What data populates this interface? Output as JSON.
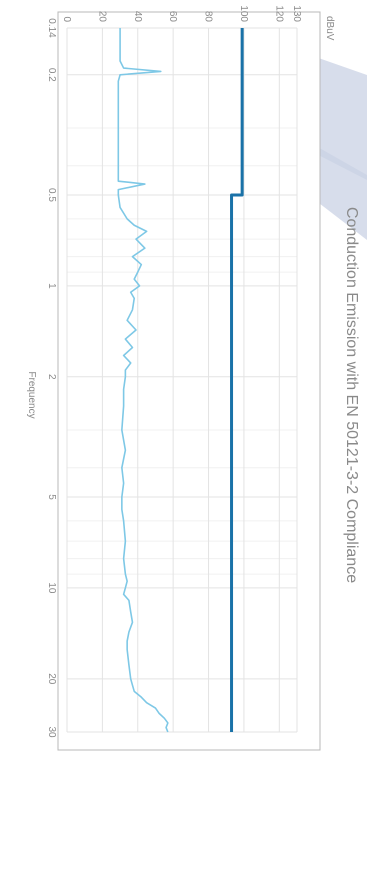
{
  "chart_data": {
    "type": "line",
    "title": "Conduction Emission with EN 50121-3-2 Compliance",
    "xlabel": "Frequency",
    "ylabel": "",
    "unit_label": "dBuV",
    "x_scale": "log",
    "xlim": [
      0.14,
      30
    ],
    "ylim": [
      0,
      130
    ],
    "grid": true,
    "x_ticks": [
      0.14,
      0.2,
      0.5,
      1,
      2,
      5,
      10,
      20,
      30
    ],
    "x_tick_labels": [
      "0.14",
      "0.2",
      "0.5",
      "1",
      "2",
      "5",
      "10",
      "20",
      "30"
    ],
    "y_ticks": [
      0,
      20,
      40,
      60,
      80,
      100,
      120,
      130
    ],
    "y_tick_labels": [
      "0",
      "20",
      "40",
      "60",
      "80",
      "100",
      "120",
      "130"
    ],
    "series": [
      {
        "color": "#1a72a8",
        "x": [
          0.14,
          0.5,
          0.5,
          30
        ],
        "y": [
          99,
          99,
          93,
          93
        ]
      },
      {
        "color": "#7ec8e6",
        "x": [
          0.14,
          0.16,
          0.18,
          0.19,
          0.195,
          0.2,
          0.21,
          0.25,
          0.3,
          0.4,
          0.45,
          0.46,
          0.48,
          0.5,
          0.55,
          0.6,
          0.63,
          0.66,
          0.7,
          0.75,
          0.8,
          0.85,
          0.9,
          0.95,
          1,
          1.05,
          1.1,
          1.2,
          1.3,
          1.4,
          1.5,
          1.6,
          1.7,
          1.8,
          1.9,
          2,
          2.2,
          2.5,
          3,
          3.5,
          4,
          4.5,
          5,
          5.5,
          6,
          7,
          8,
          9,
          9.5,
          10,
          10.5,
          11,
          12,
          13,
          14,
          15,
          16,
          18,
          20,
          21,
          22,
          23,
          24,
          25,
          26,
          27,
          28,
          29,
          30
        ],
        "y": [
          30,
          30,
          30,
          32,
          53,
          30,
          29,
          29,
          29,
          29,
          29,
          44,
          29,
          29,
          30,
          34,
          38,
          45,
          39,
          44,
          37,
          42,
          40,
          38,
          41,
          36,
          38,
          37,
          34,
          39,
          33,
          37,
          32,
          36,
          33,
          33,
          32,
          32,
          31,
          33,
          31,
          32,
          31,
          31,
          32,
          33,
          32,
          33,
          34,
          33,
          32,
          35,
          36,
          37,
          35,
          34,
          34,
          35,
          36,
          37,
          38,
          42,
          45,
          50,
          52,
          55,
          57,
          56,
          57
        ]
      }
    ]
  }
}
